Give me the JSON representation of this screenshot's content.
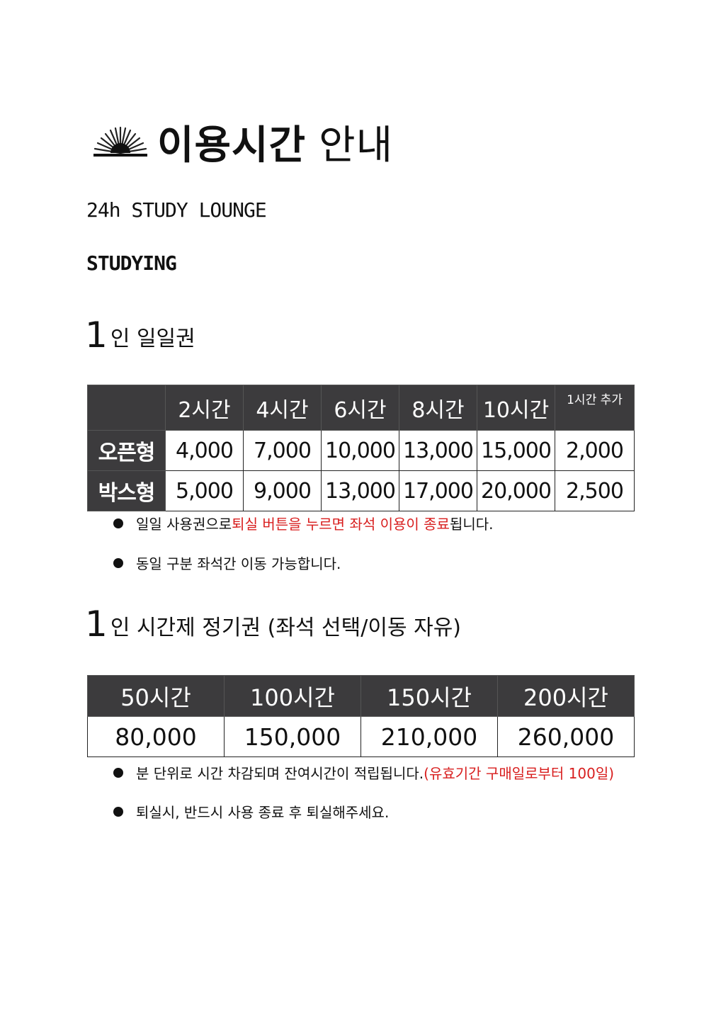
{
  "header": {
    "title_bold": "이용시간",
    "title_light": "안내",
    "subtitle1": "24h STUDY LOUNGE",
    "subtitle2": "STUDYING",
    "logo_icon": "rising-sun-icon"
  },
  "section1": {
    "number": "1",
    "heading": "인 일일권",
    "columns": [
      "",
      "2시간",
      "4시간",
      "6시간",
      "8시간",
      "10시간",
      "1시간 추가"
    ],
    "rows": [
      {
        "label": "오픈형",
        "values": [
          "4,000",
          "7,000",
          "10,000",
          "13,000",
          "15,000",
          "2,000"
        ]
      },
      {
        "label": "박스형",
        "values": [
          "5,000",
          "9,000",
          "13,000",
          "17,000",
          "20,000",
          "2,500"
        ]
      }
    ],
    "notes": [
      {
        "before": "일일 사용권으로 ",
        "red": "퇴실 버튼을 누르면 좌석 이용이 종료",
        "after": "됩니다."
      },
      {
        "before": "동일 구분 좌석간 이동 가능합니다.",
        "red": "",
        "after": ""
      }
    ]
  },
  "section2": {
    "number": "1",
    "heading": "인 시간제 정기권 (좌석 선택/이동 자유)",
    "columns": [
      "50시간",
      "100시간",
      "150시간",
      "200시간"
    ],
    "values": [
      "80,000",
      "150,000",
      "210,000",
      "260,000"
    ],
    "notes": [
      {
        "before": "분 단위로 시간 차감되며 잔여시간이 적립됩니다. ",
        "red": "(유효기간 구매일로부터 100일)",
        "after": ""
      },
      {
        "before": "퇴실시, 반드시 사용 종료 후 퇴실해주세요.",
        "red": "",
        "after": ""
      }
    ]
  },
  "colors": {
    "header_bg": "#3c3b3d",
    "accent_red": "#d81e1e",
    "text": "#111111"
  }
}
